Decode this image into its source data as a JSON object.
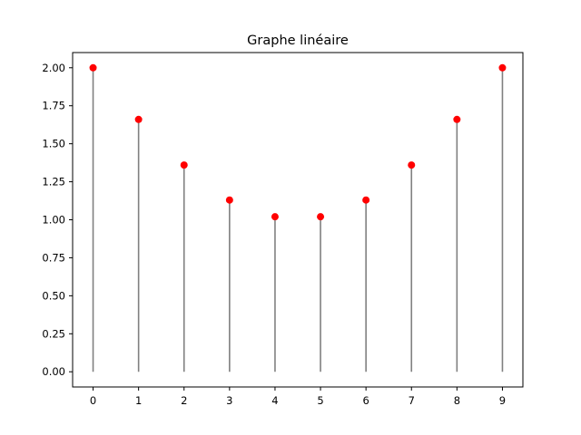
{
  "chart_data": {
    "type": "stem",
    "title": "Graphe linéaire",
    "xlabel": "",
    "ylabel": "",
    "x": [
      0,
      1,
      2,
      3,
      4,
      5,
      6,
      7,
      8,
      9
    ],
    "y": [
      2.0,
      1.66,
      1.36,
      1.13,
      1.02,
      1.02,
      1.13,
      1.36,
      1.66,
      2.0
    ],
    "xlim": [
      -0.45,
      9.45
    ],
    "ylim": [
      -0.1,
      2.1
    ],
    "xticks": [
      "0",
      "1",
      "2",
      "3",
      "4",
      "5",
      "6",
      "7",
      "8",
      "9"
    ],
    "yticks": [
      "0.00",
      "0.25",
      "0.50",
      "0.75",
      "1.00",
      "1.25",
      "1.50",
      "1.75",
      "2.00"
    ],
    "stem_color": "#808080",
    "marker_color": "#ff0000",
    "grid": false,
    "legend": false
  }
}
